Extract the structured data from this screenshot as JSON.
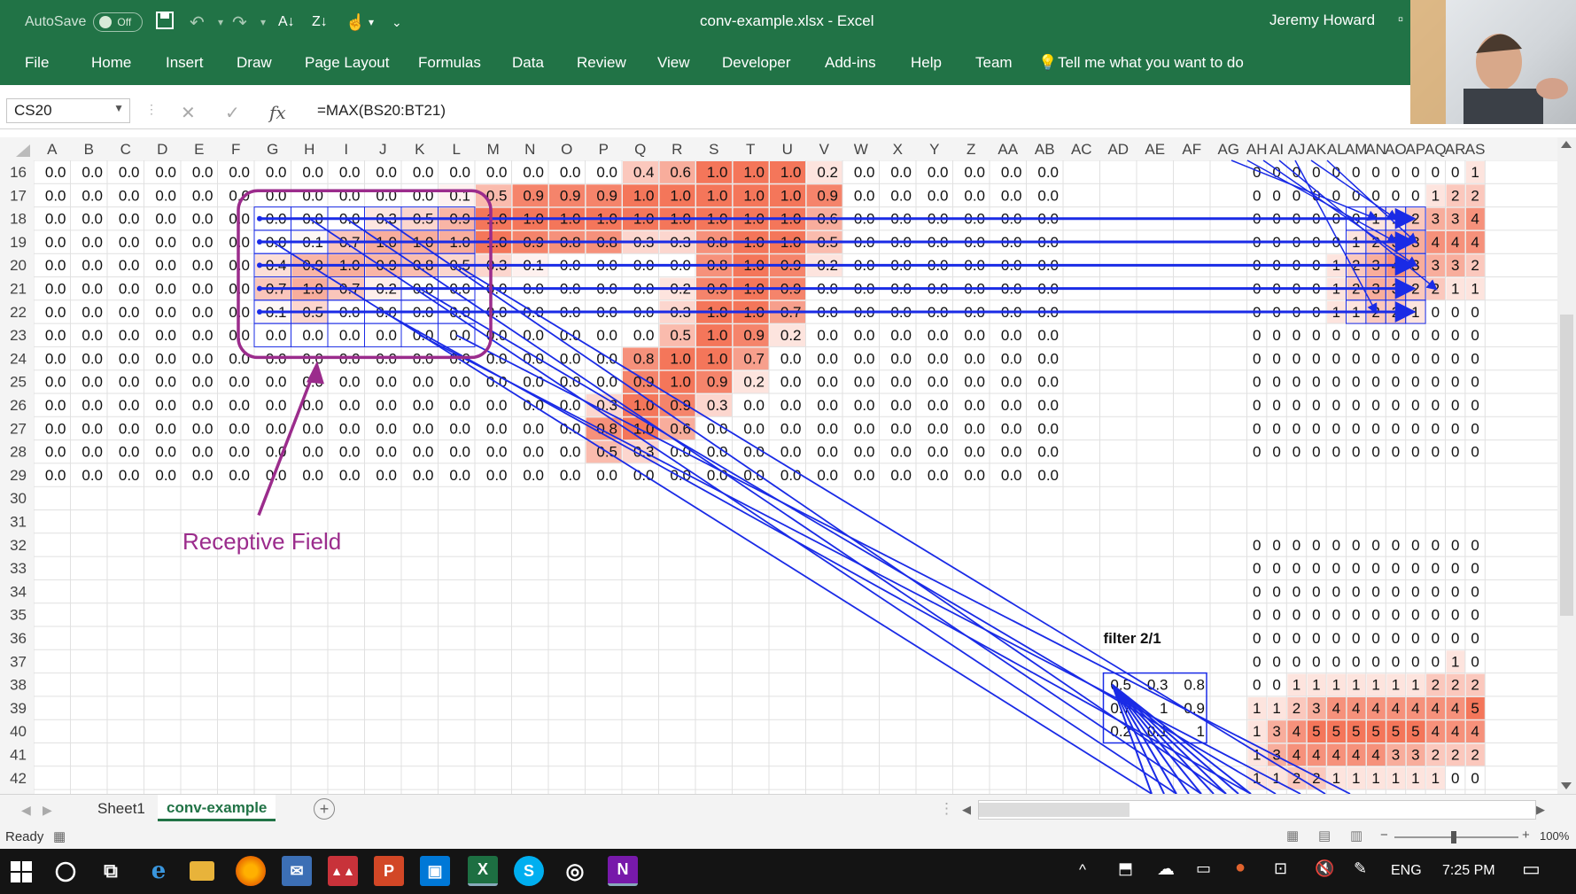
{
  "app": {
    "title": "conv-example.xlsx  -  Excel",
    "user": "Jeremy Howard",
    "autosave_label": "AutoSave",
    "autosave_state": "Off"
  },
  "ribbon_tabs": [
    "File",
    "Home",
    "Insert",
    "Draw",
    "Page Layout",
    "Formulas",
    "Data",
    "Review",
    "View",
    "Developer",
    "Add-ins",
    "Help",
    "Team"
  ],
  "tell_me": "Tell me what you want to do",
  "namebox": "CS20",
  "formula": "=MAX(BS20:BT21)",
  "columns": [
    "A",
    "B",
    "C",
    "D",
    "E",
    "F",
    "G",
    "H",
    "I",
    "J",
    "K",
    "L",
    "M",
    "N",
    "O",
    "P",
    "Q",
    "R",
    "S",
    "T",
    "U",
    "V",
    "W",
    "X",
    "Y",
    "Z",
    "AA",
    "AB",
    "AC",
    "AD",
    "AE",
    "AF",
    "AG",
    "AH",
    "AI",
    "AJ",
    "AK",
    "AL",
    "AM",
    "AN",
    "AO",
    "AP",
    "AQ",
    "AR",
    "AS"
  ],
  "rows": [
    "16",
    "17",
    "18",
    "19",
    "20",
    "21",
    "22",
    "23",
    "24",
    "25",
    "26",
    "27",
    "28",
    "29",
    "30",
    "31",
    "32",
    "33",
    "34",
    "35",
    "36",
    "37",
    "38",
    "39",
    "40",
    "41",
    "42"
  ],
  "left_grid": [
    [
      "0.0",
      "0.0",
      "0.0",
      "0.0",
      "0.0",
      "0.0",
      "0.0",
      "0.0",
      "0.0",
      "0.0",
      "0.0",
      "0.0",
      "0.0",
      "0.0",
      "0.0",
      "0.0",
      "0.4",
      "0.6",
      "1.0",
      "1.0",
      "1.0",
      "0.2",
      "0.0",
      "0.0",
      "0.0",
      "0.0",
      "0.0",
      "0.0"
    ],
    [
      "0.0",
      "0.0",
      "0.0",
      "0.0",
      "0.0",
      "0.0",
      "0.0",
      "0.0",
      "0.0",
      "0.0",
      "0.0",
      "0.1",
      "0.5",
      "0.9",
      "0.9",
      "0.9",
      "1.0",
      "1.0",
      "1.0",
      "1.0",
      "1.0",
      "0.9",
      "0.0",
      "0.0",
      "0.0",
      "0.0",
      "0.0",
      "0.0"
    ],
    [
      "0.0",
      "0.0",
      "0.0",
      "0.0",
      "0.0",
      "0.0",
      "0.0",
      "0.0",
      "0.0",
      "0.3",
      "0.5",
      "0.9",
      "1.0",
      "1.0",
      "1.0",
      "1.0",
      "1.0",
      "1.0",
      "1.0",
      "1.0",
      "1.0",
      "0.6",
      "0.0",
      "0.0",
      "0.0",
      "0.0",
      "0.0",
      "0.0"
    ],
    [
      "0.0",
      "0.0",
      "0.0",
      "0.0",
      "0.0",
      "0.0",
      "0.0",
      "0.1",
      "0.7",
      "1.0",
      "1.0",
      "1.0",
      "1.0",
      "0.9",
      "0.8",
      "0.8",
      "0.3",
      "0.3",
      "0.8",
      "1.0",
      "1.0",
      "0.5",
      "0.0",
      "0.0",
      "0.0",
      "0.0",
      "0.0",
      "0.0"
    ],
    [
      "0.0",
      "0.0",
      "0.0",
      "0.0",
      "0.0",
      "0.0",
      "0.4",
      "0.9",
      "1.0",
      "0.9",
      "0.8",
      "0.5",
      "0.3",
      "0.1",
      "0.0",
      "0.0",
      "0.0",
      "0.0",
      "0.8",
      "1.0",
      "0.9",
      "0.2",
      "0.0",
      "0.0",
      "0.0",
      "0.0",
      "0.0",
      "0.0"
    ],
    [
      "0.0",
      "0.0",
      "0.0",
      "0.0",
      "0.0",
      "0.0",
      "0.7",
      "1.0",
      "0.7",
      "0.2",
      "0.0",
      "0.0",
      "0.0",
      "0.0",
      "0.0",
      "0.0",
      "0.0",
      "0.2",
      "0.9",
      "1.0",
      "0.9",
      "0.0",
      "0.0",
      "0.0",
      "0.0",
      "0.0",
      "0.0",
      "0.0"
    ],
    [
      "0.0",
      "0.0",
      "0.0",
      "0.0",
      "0.0",
      "0.0",
      "0.1",
      "0.5",
      "0.0",
      "0.0",
      "0.0",
      "0.0",
      "0.0",
      "0.0",
      "0.0",
      "0.0",
      "0.0",
      "0.3",
      "1.0",
      "1.0",
      "0.7",
      "0.0",
      "0.0",
      "0.0",
      "0.0",
      "0.0",
      "0.0",
      "0.0"
    ],
    [
      "0.0",
      "0.0",
      "0.0",
      "0.0",
      "0.0",
      "0.0",
      "0.0",
      "0.0",
      "0.0",
      "0.0",
      "0.0",
      "0.0",
      "0.0",
      "0.0",
      "0.0",
      "0.0",
      "0.0",
      "0.5",
      "1.0",
      "0.9",
      "0.2",
      "0.0",
      "0.0",
      "0.0",
      "0.0",
      "0.0",
      "0.0",
      "0.0"
    ],
    [
      "0.0",
      "0.0",
      "0.0",
      "0.0",
      "0.0",
      "0.0",
      "0.0",
      "0.0",
      "0.0",
      "0.0",
      "0.0",
      "0.0",
      "0.0",
      "0.0",
      "0.0",
      "0.0",
      "0.8",
      "1.0",
      "1.0",
      "0.7",
      "0.0",
      "0.0",
      "0.0",
      "0.0",
      "0.0",
      "0.0",
      "0.0",
      "0.0"
    ],
    [
      "0.0",
      "0.0",
      "0.0",
      "0.0",
      "0.0",
      "0.0",
      "0.0",
      "0.0",
      "0.0",
      "0.0",
      "0.0",
      "0.0",
      "0.0",
      "0.0",
      "0.0",
      "0.0",
      "0.9",
      "1.0",
      "0.9",
      "0.2",
      "0.0",
      "0.0",
      "0.0",
      "0.0",
      "0.0",
      "0.0",
      "0.0",
      "0.0"
    ],
    [
      "0.0",
      "0.0",
      "0.0",
      "0.0",
      "0.0",
      "0.0",
      "0.0",
      "0.0",
      "0.0",
      "0.0",
      "0.0",
      "0.0",
      "0.0",
      "0.0",
      "0.0",
      "0.3",
      "1.0",
      "0.9",
      "0.3",
      "0.0",
      "0.0",
      "0.0",
      "0.0",
      "0.0",
      "0.0",
      "0.0",
      "0.0",
      "0.0"
    ],
    [
      "0.0",
      "0.0",
      "0.0",
      "0.0",
      "0.0",
      "0.0",
      "0.0",
      "0.0",
      "0.0",
      "0.0",
      "0.0",
      "0.0",
      "0.0",
      "0.0",
      "0.0",
      "0.8",
      "1.0",
      "0.6",
      "0.0",
      "0.0",
      "0.0",
      "0.0",
      "0.0",
      "0.0",
      "0.0",
      "0.0",
      "0.0",
      "0.0"
    ],
    [
      "0.0",
      "0.0",
      "0.0",
      "0.0",
      "0.0",
      "0.0",
      "0.0",
      "0.0",
      "0.0",
      "0.0",
      "0.0",
      "0.0",
      "0.0",
      "0.0",
      "0.0",
      "0.5",
      "0.3",
      "0.0",
      "0.0",
      "0.0",
      "0.0",
      "0.0",
      "0.0",
      "0.0",
      "0.0",
      "0.0",
      "0.0",
      "0.0"
    ],
    [
      "0.0",
      "0.0",
      "0.0",
      "0.0",
      "0.0",
      "0.0",
      "0.0",
      "0.0",
      "0.0",
      "0.0",
      "0.0",
      "0.0",
      "0.0",
      "0.0",
      "0.0",
      "0.0",
      "0.0",
      "0.0",
      "0.0",
      "0.0",
      "0.0",
      "0.0",
      "0.0",
      "0.0",
      "0.0",
      "0.0",
      "0.0",
      "0.0"
    ]
  ],
  "right_grid_top": [
    [
      "0",
      "0",
      "0",
      "0",
      "0",
      "0",
      "0",
      "0",
      "0",
      "0",
      "0",
      "1"
    ],
    [
      "0",
      "0",
      "0",
      "0",
      "0",
      "0",
      "0",
      "0",
      "0",
      "1",
      "2",
      "2"
    ],
    [
      "0",
      "0",
      "0",
      "0",
      "0",
      "0",
      "1",
      "1",
      "2",
      "3",
      "3",
      "4"
    ],
    [
      "0",
      "0",
      "0",
      "0",
      "0",
      "1",
      "2",
      "3",
      "3",
      "4",
      "4",
      "4"
    ],
    [
      "0",
      "0",
      "0",
      "0",
      "1",
      "2",
      "3",
      "4",
      "3",
      "3",
      "3",
      "2"
    ],
    [
      "0",
      "0",
      "0",
      "0",
      "1",
      "2",
      "3",
      "3",
      "2",
      "2",
      "1",
      "1"
    ],
    [
      "0",
      "0",
      "0",
      "0",
      "1",
      "1",
      "2",
      "2",
      "1",
      "0",
      "0",
      "0"
    ],
    [
      "0",
      "0",
      "0",
      "0",
      "0",
      "0",
      "0",
      "0",
      "0",
      "0",
      "0",
      "0"
    ],
    [
      "0",
      "0",
      "0",
      "0",
      "0",
      "0",
      "0",
      "0",
      "0",
      "0",
      "0",
      "0"
    ],
    [
      "0",
      "0",
      "0",
      "0",
      "0",
      "0",
      "0",
      "0",
      "0",
      "0",
      "0",
      "0"
    ],
    [
      "0",
      "0",
      "0",
      "0",
      "0",
      "0",
      "0",
      "0",
      "0",
      "0",
      "0",
      "0"
    ],
    [
      "0",
      "0",
      "0",
      "0",
      "0",
      "0",
      "0",
      "0",
      "0",
      "0",
      "0",
      "0"
    ],
    [
      "0",
      "0",
      "0",
      "0",
      "0",
      "0",
      "0",
      "0",
      "0",
      "0",
      "0",
      "0"
    ]
  ],
  "right_grid_bottom": [
    [
      "0",
      "0",
      "0",
      "0",
      "0",
      "0",
      "0",
      "0",
      "0",
      "0",
      "0",
      "0"
    ],
    [
      "0",
      "0",
      "0",
      "0",
      "0",
      "0",
      "0",
      "0",
      "0",
      "0",
      "0",
      "0"
    ],
    [
      "0",
      "0",
      "0",
      "0",
      "0",
      "0",
      "0",
      "0",
      "0",
      "0",
      "0",
      "0"
    ],
    [
      "0",
      "0",
      "0",
      "0",
      "0",
      "0",
      "0",
      "0",
      "0",
      "0",
      "0",
      "0"
    ],
    [
      "0",
      "0",
      "0",
      "0",
      "0",
      "0",
      "0",
      "0",
      "0",
      "0",
      "0",
      "0"
    ],
    [
      "0",
      "0",
      "0",
      "0",
      "0",
      "0",
      "0",
      "0",
      "0",
      "0",
      "1",
      "0"
    ],
    [
      "0",
      "0",
      "1",
      "1",
      "1",
      "1",
      "1",
      "1",
      "1",
      "2",
      "2",
      "2"
    ],
    [
      "1",
      "1",
      "2",
      "3",
      "4",
      "4",
      "4",
      "4",
      "4",
      "4",
      "4",
      "5"
    ],
    [
      "1",
      "3",
      "4",
      "5",
      "5",
      "5",
      "5",
      "5",
      "5",
      "4",
      "4",
      "4"
    ],
    [
      "1",
      "3",
      "4",
      "4",
      "4",
      "4",
      "4",
      "3",
      "3",
      "2",
      "2",
      "2"
    ],
    [
      "1",
      "1",
      "2",
      "2",
      "1",
      "1",
      "1",
      "1",
      "1",
      "1",
      "0",
      "0"
    ]
  ],
  "filter": {
    "title": "filter 2/1",
    "rows": [
      [
        "0.5",
        "0.3",
        "0.8"
      ],
      [
        "0.7",
        "1",
        "0.9"
      ],
      [
        "0.2",
        "0.1",
        "1"
      ]
    ]
  },
  "annotation": "Receptive Field",
  "sheets": [
    "Sheet1",
    "conv-example"
  ],
  "active_sheet": "conv-example",
  "status": "Ready",
  "zoom": "100%",
  "taskbar": {
    "lang": "ENG",
    "time": "7:25 PM"
  },
  "colors": {
    "excel_green": "#217346",
    "heat": "#f4765a",
    "arrow": "#1a2be6",
    "annotation": "#9b2c8c"
  }
}
